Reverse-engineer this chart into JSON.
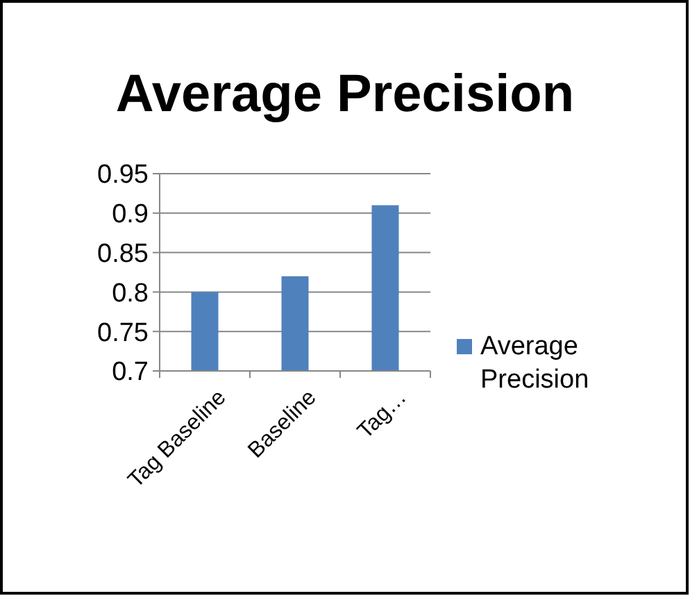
{
  "chart_data": {
    "type": "bar",
    "title": "Average Precision",
    "categories": [
      "Tag Baseline",
      "Baseline",
      "Tag…"
    ],
    "series": [
      {
        "name": "Average Precision",
        "color": "#4f81bd",
        "values": [
          0.8,
          0.82,
          0.91
        ]
      }
    ],
    "ylim": [
      0.7,
      0.95
    ],
    "yticks": [
      0.7,
      0.75,
      0.8,
      0.85,
      0.9,
      0.95
    ],
    "grid": "y",
    "legend": "right"
  }
}
